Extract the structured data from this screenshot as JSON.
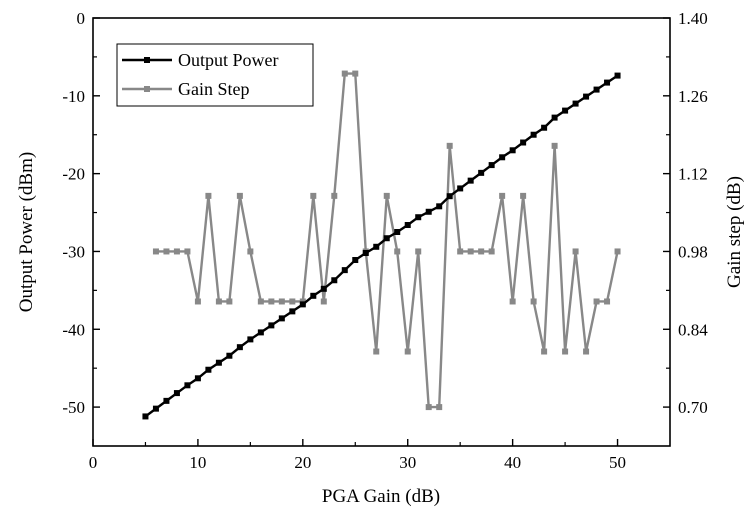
{
  "chart_data": {
    "type": "line",
    "title": "",
    "xlabel": "PGA Gain (dB)",
    "ylabel_left": "Output Power (dBm)",
    "ylabel_right": "Gain step (dB)",
    "xlim": [
      0,
      55
    ],
    "ylim_left": [
      -55,
      0
    ],
    "ylim_right": [
      0.63,
      1.4
    ],
    "x_ticks": [
      0,
      10,
      20,
      30,
      40,
      50
    ],
    "y_left_ticks": [
      0,
      -10,
      -20,
      -30,
      -40,
      -50
    ],
    "y_right_ticks": [
      "0.70",
      "0.84",
      "0.98",
      "1.12",
      "1.26",
      "1.40"
    ],
    "grid": false,
    "legend_position": "top-left",
    "series": [
      {
        "name": "Output Power",
        "axis": "left",
        "color": "#000000",
        "x": [
          5,
          6,
          7,
          8,
          9,
          10,
          11,
          12,
          13,
          14,
          15,
          16,
          17,
          18,
          19,
          20,
          21,
          22,
          23,
          24,
          25,
          26,
          27,
          28,
          29,
          30,
          31,
          32,
          33,
          34,
          35,
          36,
          37,
          38,
          39,
          40,
          41,
          42,
          43,
          44,
          45,
          46,
          47,
          48,
          49,
          50
        ],
        "values": [
          -51.2,
          -50.2,
          -49.2,
          -48.2,
          -47.2,
          -46.3,
          -45.2,
          -44.3,
          -43.4,
          -42.3,
          -41.3,
          -40.4,
          -39.5,
          -38.6,
          -37.7,
          -36.8,
          -35.7,
          -34.8,
          -33.7,
          -32.4,
          -31.1,
          -30.2,
          -29.4,
          -28.3,
          -27.5,
          -26.6,
          -25.6,
          -24.9,
          -24.2,
          -22.9,
          -21.9,
          -20.9,
          -19.9,
          -18.9,
          -17.9,
          -17.0,
          -16.0,
          -15.0,
          -14.1,
          -12.8,
          -11.9,
          -11.0,
          -10.1,
          -9.2,
          -8.3,
          -7.4
        ]
      },
      {
        "name": "Gain Step",
        "axis": "right",
        "color": "#888888",
        "x": [
          6,
          7,
          8,
          9,
          10,
          11,
          12,
          13,
          14,
          15,
          16,
          17,
          18,
          19,
          20,
          21,
          22,
          23,
          24,
          25,
          26,
          27,
          28,
          29,
          30,
          31,
          32,
          33,
          34,
          35,
          36,
          37,
          38,
          39,
          40,
          41,
          42,
          43,
          44,
          45,
          46,
          47,
          48,
          49,
          50
        ],
        "values": [
          0.98,
          0.98,
          0.98,
          0.98,
          0.89,
          1.08,
          0.89,
          0.89,
          1.08,
          0.98,
          0.89,
          0.89,
          0.89,
          0.89,
          0.89,
          1.08,
          0.89,
          1.08,
          1.3,
          1.3,
          0.98,
          0.8,
          1.08,
          0.98,
          0.8,
          0.98,
          0.7,
          0.7,
          1.17,
          0.98,
          0.98,
          0.98,
          0.98,
          1.08,
          0.89,
          1.08,
          0.89,
          0.8,
          1.17,
          0.8,
          0.98,
          0.8,
          0.89,
          0.89,
          0.98
        ]
      }
    ]
  }
}
